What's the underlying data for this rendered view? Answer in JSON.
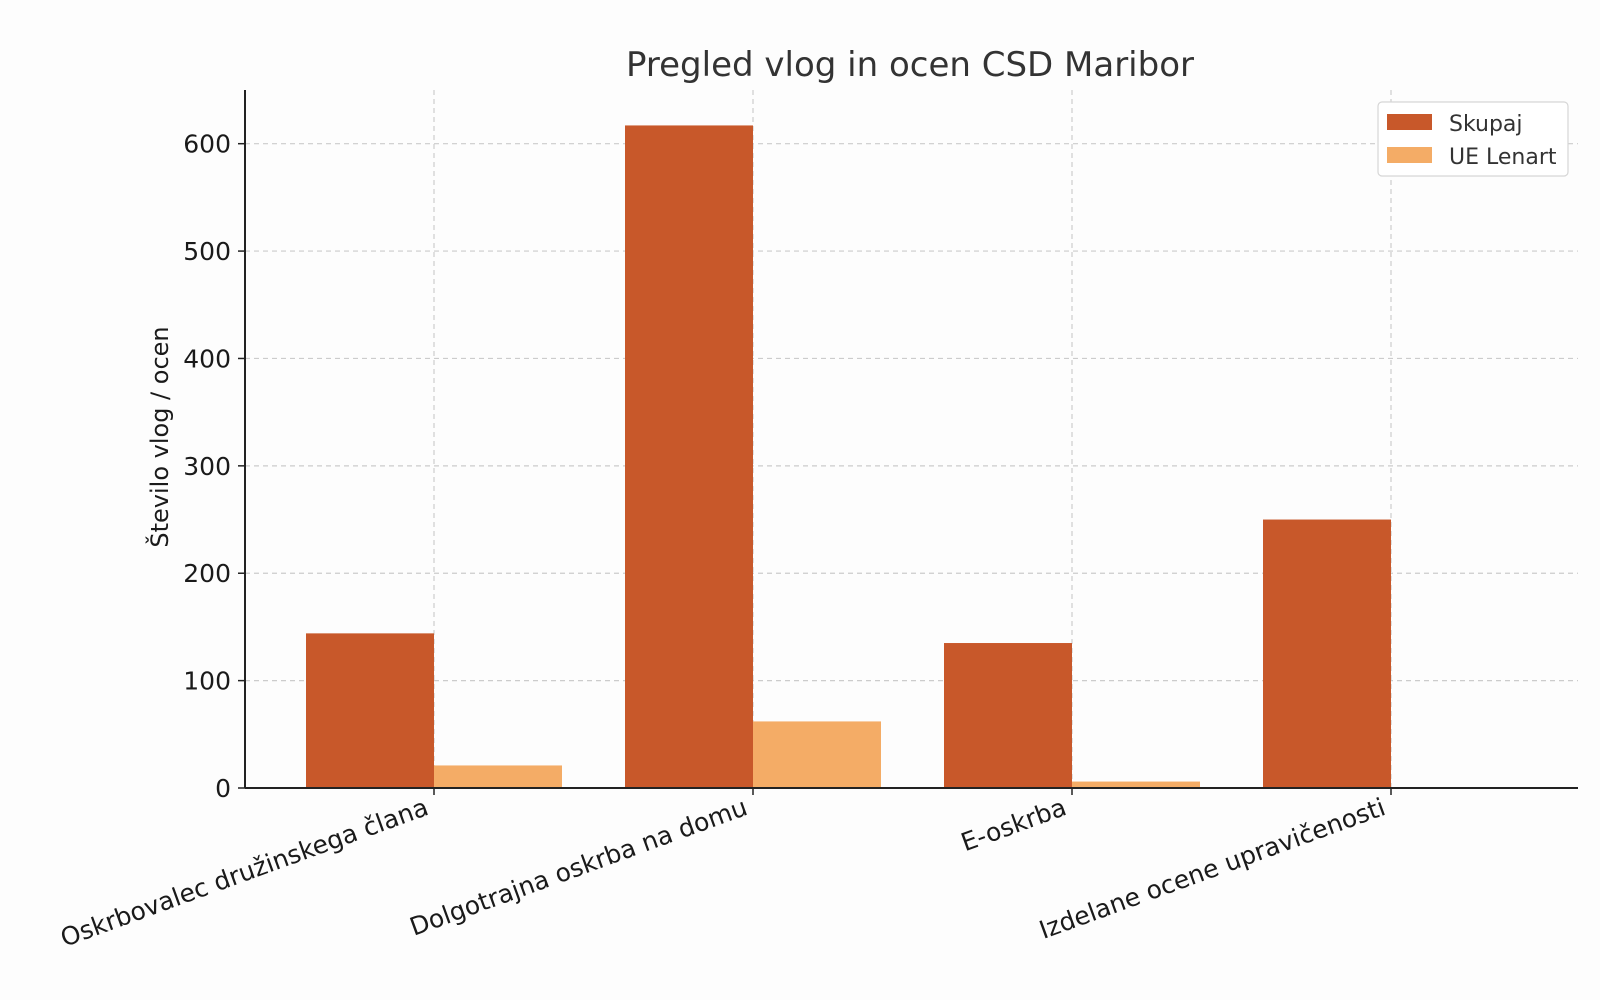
{
  "chart_data": {
    "type": "bar",
    "title": "Pregled vlog in ocen CSD Maribor",
    "xlabel": "",
    "ylabel": "Število vlog / ocen",
    "categories": [
      "Oskrbovalec družinskega člana",
      "Dolgotrajna oskrba na domu",
      "E-oskrba",
      "Izdelane ocene upravičenosti"
    ],
    "series": [
      {
        "name": "Skupaj",
        "values": [
          144,
          617,
          135,
          250
        ],
        "color": "#c8582a"
      },
      {
        "name": "UE Lenart",
        "values": [
          21,
          62,
          6,
          0
        ],
        "color": "#f4ac66"
      }
    ],
    "ylim": [
      0,
      650
    ],
    "yticks": [
      0,
      100,
      200,
      300,
      400,
      500,
      600
    ],
    "grid": true,
    "legend_position": "top-right"
  }
}
